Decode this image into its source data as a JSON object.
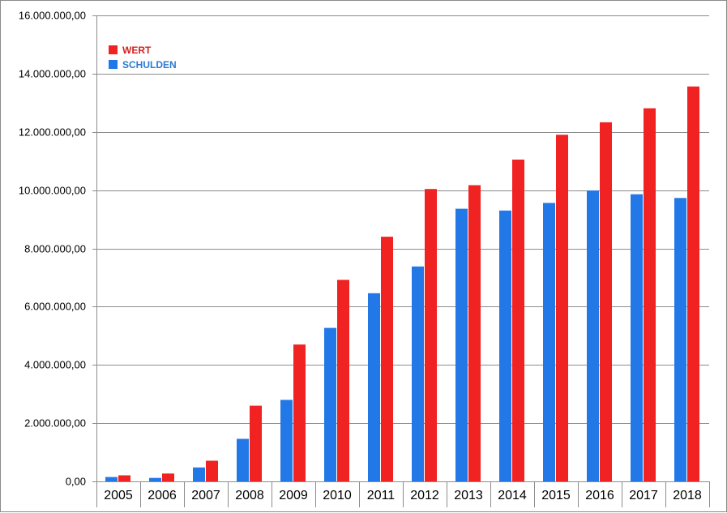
{
  "chart_data": {
    "type": "bar",
    "title": "",
    "xlabel": "",
    "ylabel": "",
    "ylim": [
      0,
      16000000
    ],
    "y_ticks": [
      0,
      2000000,
      4000000,
      6000000,
      8000000,
      10000000,
      12000000,
      14000000,
      16000000
    ],
    "y_tick_labels": [
      "0,00",
      "2.000.000,00",
      "4.000.000,00",
      "6.000.000,00",
      "8.000.000,00",
      "10.000.000,00",
      "12.000.000,00",
      "14.000.000,00",
      "16.000.000,00"
    ],
    "grid": true,
    "legend_position": "top-left",
    "categories": [
      "2005",
      "2006",
      "2007",
      "2008",
      "2009",
      "2010",
      "2011",
      "2012",
      "2013",
      "2014",
      "2015",
      "2016",
      "2017",
      "2018"
    ],
    "series": [
      {
        "name": "SCHULDEN",
        "color": "#2378e8",
        "values": [
          150000,
          120000,
          480000,
          1460000,
          2800000,
          5270000,
          6460000,
          7380000,
          9360000,
          9300000,
          9560000,
          9990000,
          9860000,
          9730000
        ]
      },
      {
        "name": "WERT",
        "color": "#f02222",
        "values": [
          210000,
          270000,
          710000,
          2600000,
          4700000,
          6920000,
          8400000,
          10040000,
          10170000,
          11050000,
          11900000,
          12330000,
          12810000,
          13560000
        ]
      }
    ]
  },
  "legend": {
    "items": [
      {
        "label": "WERT",
        "color": "#f02222",
        "text_color": "#d42020"
      },
      {
        "label": "SCHULDEN",
        "color": "#2378e8",
        "text_color": "#2a7ad0"
      }
    ]
  }
}
